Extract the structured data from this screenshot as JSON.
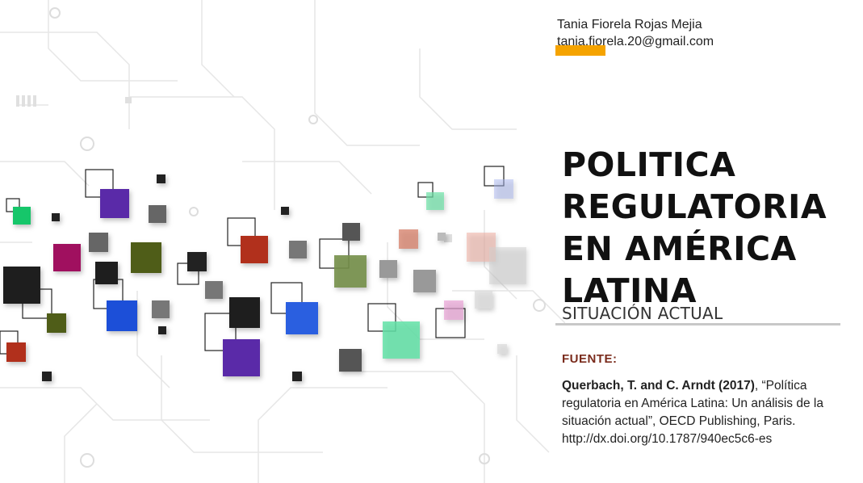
{
  "author": {
    "name": "Tania Fiorela Rojas Mejia",
    "email": "tania.fiorela.20@gmail.com",
    "highlight_color": "#f5a300"
  },
  "title": {
    "lines": [
      "POLITICA",
      "REGULATORIA",
      "EN AMÉRICA",
      "LATINA"
    ],
    "subtitle": "SITUACIÓN ACTUAL"
  },
  "source": {
    "label": "FUENTE:",
    "citation_authors": "Querbach, T. and C. Arndt (2017)",
    "citation_rest": ", “Política regulatoria en América Latina: Un análisis de la situación actual”, OECD Publishing, Paris.",
    "citation_doi": "http://dx.doi.org/10.1787/940ec5c6-es"
  },
  "colors": {
    "title": "#111111",
    "source_label": "#7a2b1c",
    "rule": "#c8c8c8"
  }
}
